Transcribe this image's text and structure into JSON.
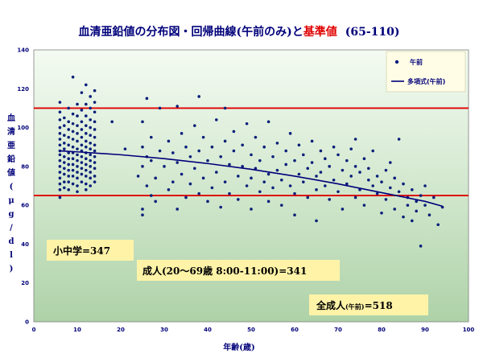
{
  "chart_data": {
    "type": "scatter",
    "title_main": "血清亜鉛値の分布図・回帰曲線(午前のみ)と",
    "title_accent": "基準値",
    "title_range": "(65-110)",
    "xlabel": "年齢(歳)",
    "ylabel": "血清亜鉛値(μg/dl)",
    "xlim": [
      0,
      100
    ],
    "ylim": [
      0,
      140
    ],
    "x_ticks": [
      0,
      10,
      20,
      30,
      40,
      50,
      60,
      70,
      80,
      90,
      100
    ],
    "y_ticks": [
      0,
      20,
      40,
      60,
      80,
      100,
      120,
      140
    ],
    "reference_lines": [
      110,
      65
    ],
    "legend_position": "top-right",
    "series": [
      {
        "name": "午前",
        "kind": "points",
        "color": "#0a1f7a",
        "points": [
          [
            6,
            113
          ],
          [
            6,
            108
          ],
          [
            6,
            104
          ],
          [
            6,
            100
          ],
          [
            6,
            97
          ],
          [
            6,
            94
          ],
          [
            6,
            91
          ],
          [
            6,
            88
          ],
          [
            6,
            86
          ],
          [
            6,
            83
          ],
          [
            6,
            80
          ],
          [
            6,
            77
          ],
          [
            6,
            74
          ],
          [
            6,
            71
          ],
          [
            6,
            68
          ],
          [
            6,
            64
          ],
          [
            7,
            105
          ],
          [
            7,
            101
          ],
          [
            7,
            96
          ],
          [
            7,
            92
          ],
          [
            7,
            89
          ],
          [
            7,
            85
          ],
          [
            7,
            82
          ],
          [
            7,
            79
          ],
          [
            7,
            76
          ],
          [
            7,
            72
          ],
          [
            7,
            69
          ],
          [
            8,
            110
          ],
          [
            8,
            103
          ],
          [
            8,
            99
          ],
          [
            8,
            95
          ],
          [
            8,
            91
          ],
          [
            8,
            87
          ],
          [
            8,
            84
          ],
          [
            8,
            81
          ],
          [
            8,
            78
          ],
          [
            8,
            75
          ],
          [
            8,
            72
          ],
          [
            8,
            68
          ],
          [
            9,
            126
          ],
          [
            9,
            107
          ],
          [
            9,
            102
          ],
          [
            9,
            98
          ],
          [
            9,
            94
          ],
          [
            9,
            90
          ],
          [
            9,
            87
          ],
          [
            9,
            84
          ],
          [
            9,
            81
          ],
          [
            9,
            78
          ],
          [
            9,
            75
          ],
          [
            9,
            71
          ],
          [
            10,
            112
          ],
          [
            10,
            106
          ],
          [
            10,
            101
          ],
          [
            10,
            97
          ],
          [
            10,
            93
          ],
          [
            10,
            89
          ],
          [
            10,
            86
          ],
          [
            10,
            83
          ],
          [
            10,
            80
          ],
          [
            10,
            77
          ],
          [
            10,
            74
          ],
          [
            10,
            70
          ],
          [
            10,
            67
          ],
          [
            11,
            118
          ],
          [
            11,
            109
          ],
          [
            11,
            103
          ],
          [
            11,
            99
          ],
          [
            11,
            95
          ],
          [
            11,
            91
          ],
          [
            11,
            88
          ],
          [
            11,
            85
          ],
          [
            11,
            82
          ],
          [
            11,
            79
          ],
          [
            11,
            76
          ],
          [
            11,
            72
          ],
          [
            12,
            122
          ],
          [
            12,
            112
          ],
          [
            12,
            106
          ],
          [
            12,
            101
          ],
          [
            12,
            97
          ],
          [
            12,
            93
          ],
          [
            12,
            90
          ],
          [
            12,
            87
          ],
          [
            12,
            84
          ],
          [
            12,
            81
          ],
          [
            12,
            78
          ],
          [
            12,
            75
          ],
          [
            12,
            71
          ],
          [
            12,
            68
          ],
          [
            13,
            116
          ],
          [
            13,
            110
          ],
          [
            13,
            104
          ],
          [
            13,
            100
          ],
          [
            13,
            96
          ],
          [
            13,
            92
          ],
          [
            13,
            89
          ],
          [
            13,
            86
          ],
          [
            13,
            83
          ],
          [
            13,
            80
          ],
          [
            13,
            77
          ],
          [
            13,
            74
          ],
          [
            13,
            70
          ],
          [
            14,
            119
          ],
          [
            14,
            113
          ],
          [
            14,
            108
          ],
          [
            14,
            103
          ],
          [
            14,
            99
          ],
          [
            14,
            95
          ],
          [
            14,
            91
          ],
          [
            14,
            88
          ],
          [
            14,
            85
          ],
          [
            14,
            82
          ],
          [
            14,
            79
          ],
          [
            14,
            75
          ],
          [
            14,
            72
          ],
          [
            18,
            103
          ],
          [
            21,
            89
          ],
          [
            24,
            75
          ],
          [
            25,
            80
          ],
          [
            25,
            90
          ],
          [
            25,
            103
          ],
          [
            25,
            58
          ],
          [
            25,
            55
          ],
          [
            26,
            115
          ],
          [
            26,
            85
          ],
          [
            26,
            70
          ],
          [
            27,
            65
          ],
          [
            27,
            83
          ],
          [
            27,
            95
          ],
          [
            28,
            74
          ],
          [
            28,
            62
          ],
          [
            29,
            88
          ],
          [
            29,
            110
          ],
          [
            30,
            80
          ],
          [
            31,
            68
          ],
          [
            31,
            93
          ],
          [
            32,
            87
          ],
          [
            32,
            72
          ],
          [
            33,
            111
          ],
          [
            33,
            82
          ],
          [
            33,
            58
          ],
          [
            34,
            97
          ],
          [
            34,
            76
          ],
          [
            35,
            90
          ],
          [
            35,
            64
          ],
          [
            36,
            85
          ],
          [
            36,
            71
          ],
          [
            37,
            101
          ],
          [
            37,
            79
          ],
          [
            38,
            88
          ],
          [
            38,
            66
          ],
          [
            38,
            116
          ],
          [
            39,
            95
          ],
          [
            39,
            74
          ],
          [
            40,
            83
          ],
          [
            40,
            62
          ],
          [
            41,
            90
          ],
          [
            41,
            69
          ],
          [
            42,
            77
          ],
          [
            42,
            104
          ],
          [
            43,
            85
          ],
          [
            43,
            59
          ],
          [
            44,
            93
          ],
          [
            44,
            72
          ],
          [
            44,
            110
          ],
          [
            45,
            81
          ],
          [
            45,
            66
          ],
          [
            46,
            88
          ],
          [
            46,
            98
          ],
          [
            47,
            75
          ],
          [
            47,
            63
          ],
          [
            48,
            91
          ],
          [
            48,
            80
          ],
          [
            49,
            70
          ],
          [
            49,
            102
          ],
          [
            50,
            86
          ],
          [
            50,
            74
          ],
          [
            50,
            58
          ],
          [
            51,
            95
          ],
          [
            51,
            79
          ],
          [
            52,
            83
          ],
          [
            52,
            67
          ],
          [
            53,
            90
          ],
          [
            53,
            72
          ],
          [
            54,
            76
          ],
          [
            54,
            62
          ],
          [
            54,
            103
          ],
          [
            55,
            85
          ],
          [
            55,
            69
          ],
          [
            56,
            92
          ],
          [
            56,
            78
          ],
          [
            57,
            73
          ],
          [
            57,
            60
          ],
          [
            58,
            88
          ],
          [
            58,
            81
          ],
          [
            59,
            70
          ],
          [
            59,
            97
          ],
          [
            60,
            83
          ],
          [
            60,
            66
          ],
          [
            60,
            55
          ],
          [
            61,
            91
          ],
          [
            61,
            76
          ],
          [
            62,
            86
          ],
          [
            62,
            72
          ],
          [
            63,
            79
          ],
          [
            63,
            64
          ],
          [
            64,
            93
          ],
          [
            64,
            82
          ],
          [
            65,
            75
          ],
          [
            65,
            68
          ],
          [
            65,
            52
          ],
          [
            66,
            88
          ],
          [
            66,
            77
          ],
          [
            67,
            84
          ],
          [
            67,
            70
          ],
          [
            68,
            80
          ],
          [
            68,
            63
          ],
          [
            69,
            90
          ],
          [
            69,
            73
          ],
          [
            70,
            86
          ],
          [
            70,
            67
          ],
          [
            71,
            78
          ],
          [
            71,
            58
          ],
          [
            72,
            83
          ],
          [
            72,
            71
          ],
          [
            73,
            89
          ],
          [
            73,
            75
          ],
          [
            74,
            80
          ],
          [
            74,
            64
          ],
          [
            74,
            94
          ],
          [
            75,
            77
          ],
          [
            75,
            68
          ],
          [
            76,
            84
          ],
          [
            76,
            60
          ],
          [
            77,
            73
          ],
          [
            77,
            79
          ],
          [
            78,
            70
          ],
          [
            78,
            88
          ],
          [
            79,
            66
          ],
          [
            79,
            75
          ],
          [
            80,
            72
          ],
          [
            80,
            56
          ],
          [
            81,
            78
          ],
          [
            81,
            63
          ],
          [
            82,
            69
          ],
          [
            82,
            82
          ],
          [
            83,
            74
          ],
          [
            83,
            58
          ],
          [
            84,
            67
          ],
          [
            84,
            94
          ],
          [
            85,
            71
          ],
          [
            85,
            54
          ],
          [
            86,
            64
          ],
          [
            86,
            60
          ],
          [
            87,
            68
          ],
          [
            87,
            52
          ],
          [
            88,
            62
          ],
          [
            88,
            57
          ],
          [
            89,
            65
          ],
          [
            89,
            39
          ],
          [
            90,
            70
          ],
          [
            90,
            60
          ],
          [
            91,
            55
          ],
          [
            92,
            64
          ],
          [
            93,
            50
          ],
          [
            94,
            59
          ]
        ]
      },
      {
        "name": "多項式(午前)",
        "kind": "trendline",
        "color": "#00007a",
        "points": [
          [
            6,
            88
          ],
          [
            10,
            87.5
          ],
          [
            20,
            86
          ],
          [
            30,
            84
          ],
          [
            40,
            81.5
          ],
          [
            50,
            78.5
          ],
          [
            60,
            75
          ],
          [
            70,
            71
          ],
          [
            80,
            66.5
          ],
          [
            90,
            62
          ],
          [
            94,
            59.5
          ]
        ]
      }
    ],
    "annotations": [
      {
        "text": "小中学=347"
      },
      {
        "text": "成人(20〜69歳 8:00-11:00)=341"
      },
      {
        "text_prefix": "全成人",
        "text_small": "(午前)",
        "text_suffix": "=518"
      }
    ]
  }
}
